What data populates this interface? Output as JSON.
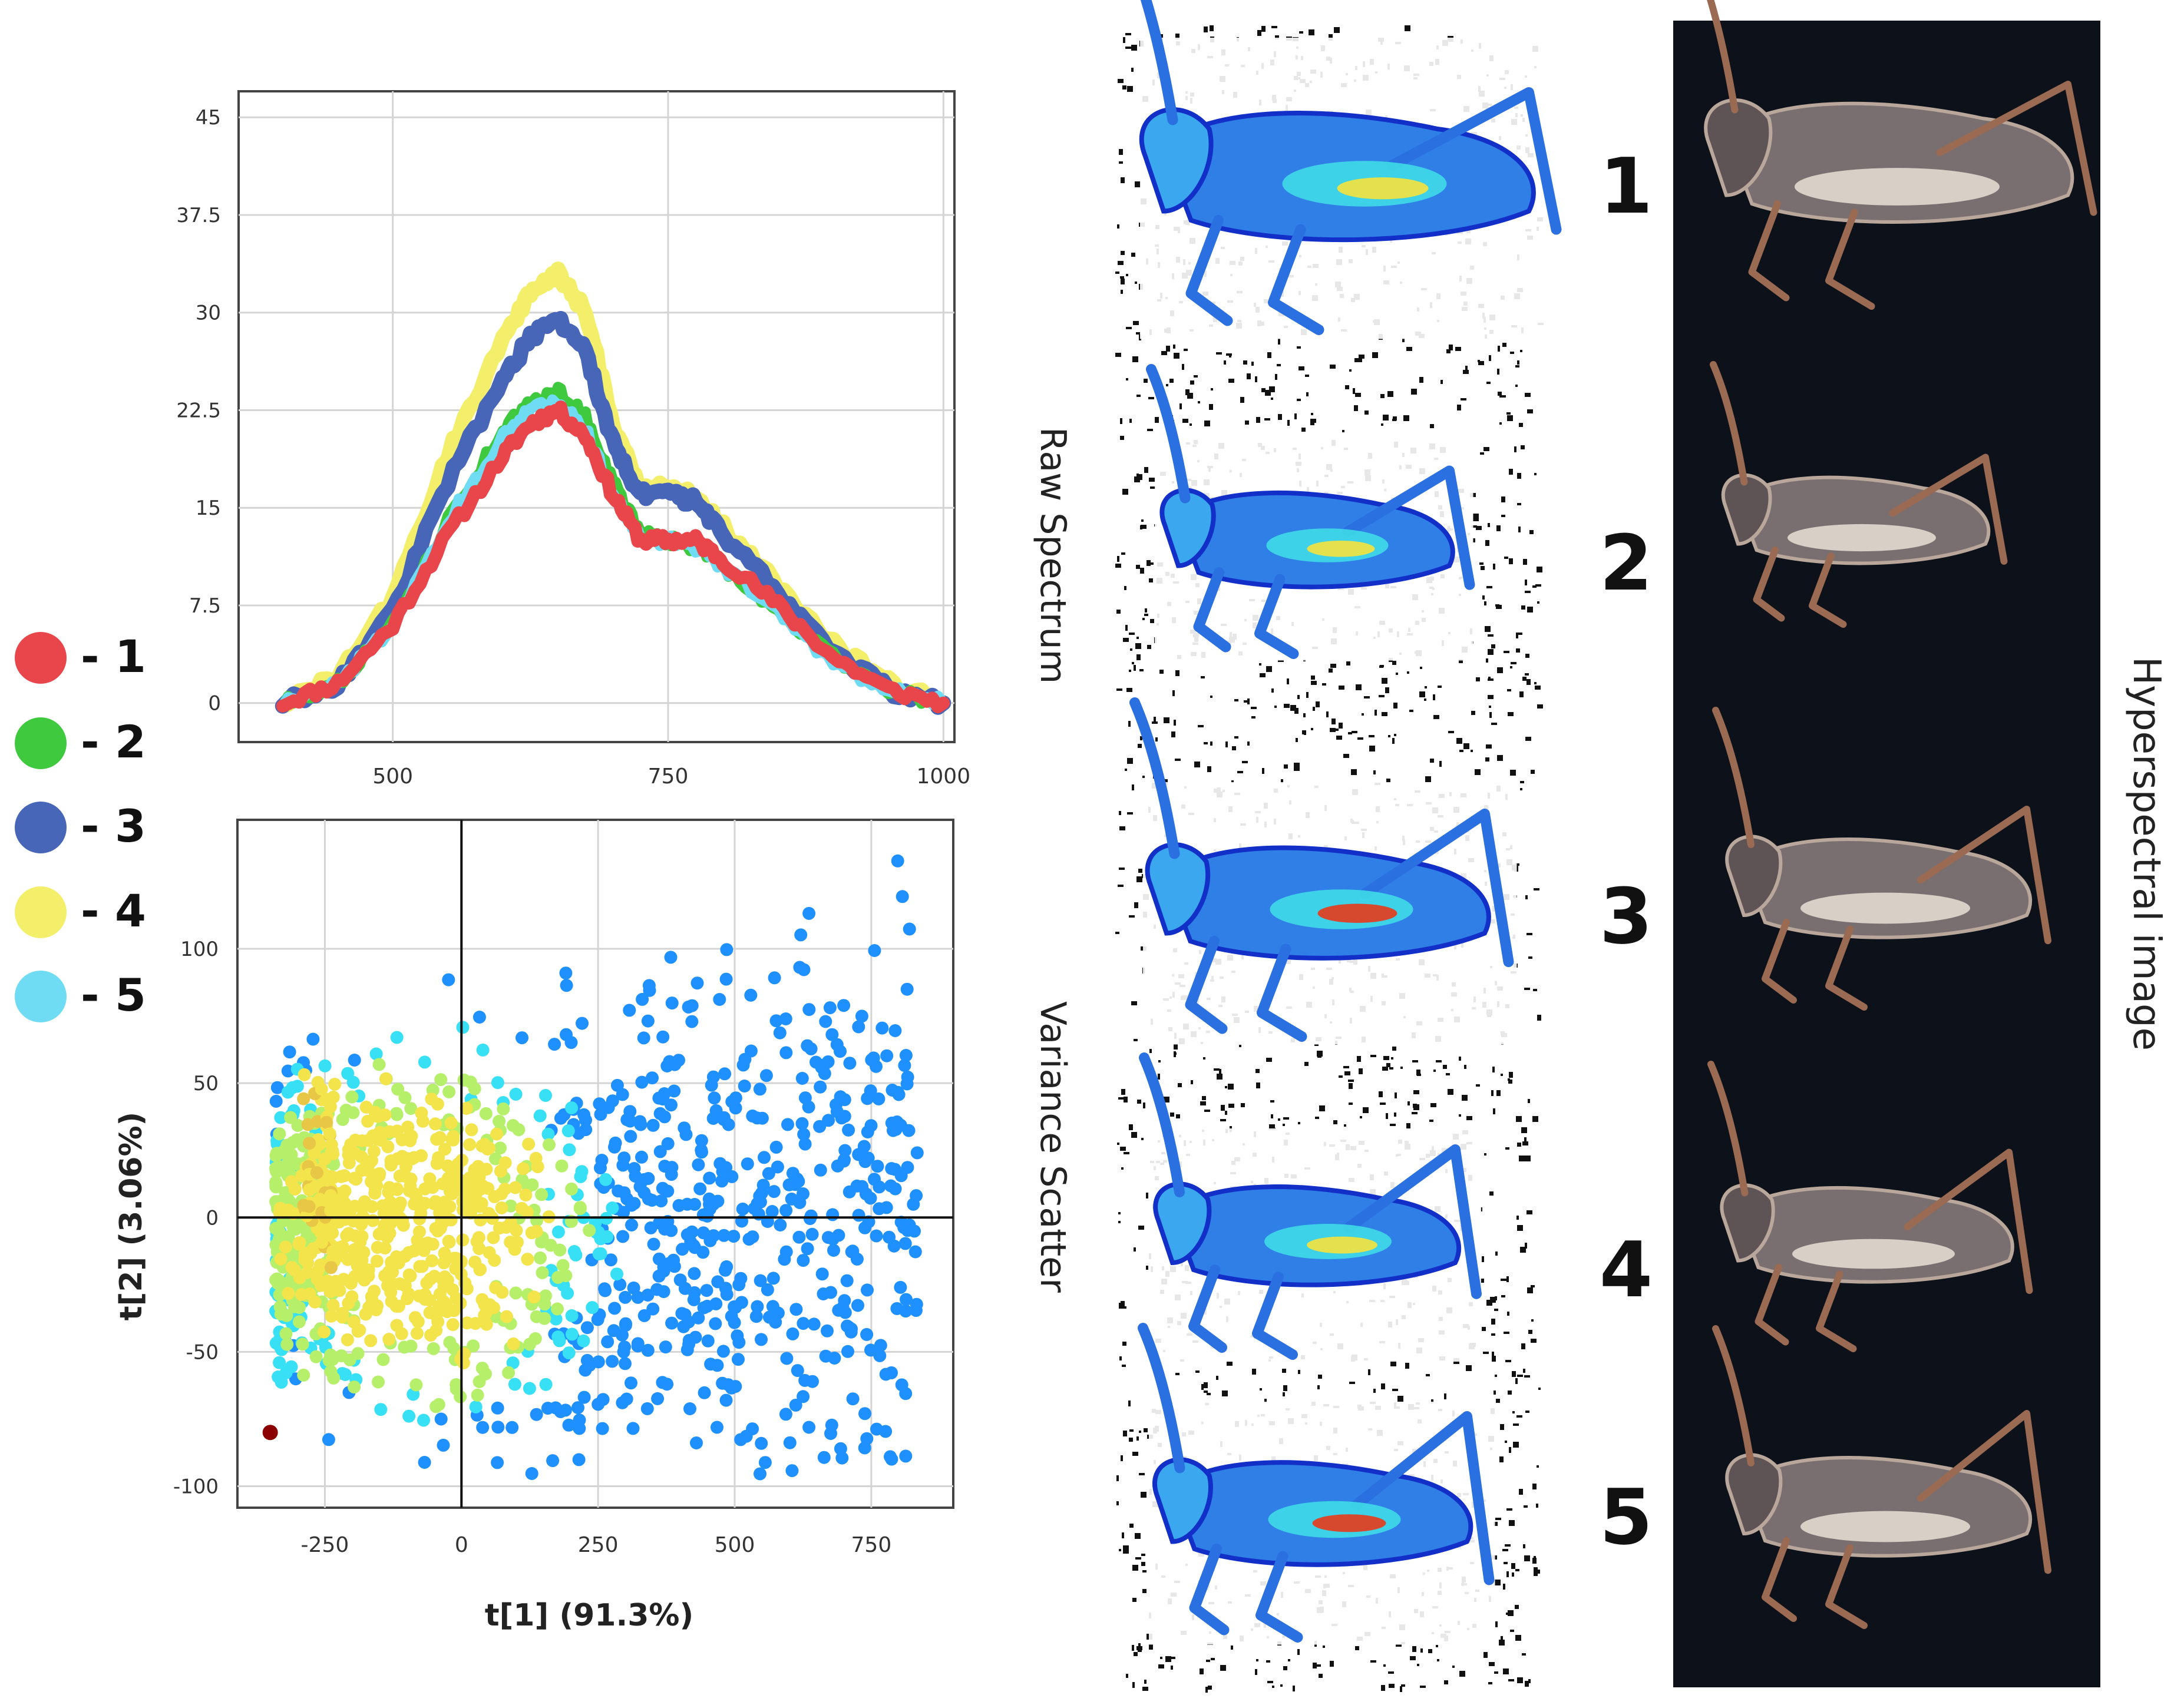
{
  "chart_data": [
    {
      "type": "line",
      "title": "",
      "xlabel": "",
      "ylabel": "",
      "xlim": [
        360,
        1010
      ],
      "ylim": [
        -3,
        47
      ],
      "x_ticks": [
        "500",
        "750",
        "1000"
      ],
      "y_ticks": [
        "0",
        "7.5",
        "15",
        "22.5",
        "30",
        "37.5",
        "45"
      ],
      "x": [
        400,
        450,
        500,
        550,
        600,
        625,
        650,
        675,
        700,
        725,
        750,
        775,
        800,
        850,
        900,
        950,
        1000
      ],
      "series": [
        {
          "name": "1",
          "color": "#e8464a",
          "values": [
            0,
            1.5,
            6,
            13,
            19,
            21.5,
            22.5,
            20.5,
            16,
            12.5,
            12.5,
            12.5,
            11,
            7.5,
            3.5,
            1,
            0
          ]
        },
        {
          "name": "2",
          "color": "#3ec93e",
          "values": [
            0,
            1.5,
            6,
            14,
            21,
            23,
            24,
            22,
            17,
            13,
            12.5,
            12,
            10.5,
            7,
            3.5,
            1,
            0
          ]
        },
        {
          "name": "3",
          "color": "#4766b8",
          "values": [
            0,
            1.5,
            7,
            17,
            25,
            28,
            29.5,
            27,
            20,
            16,
            16,
            15.5,
            13,
            8.5,
            4,
            1,
            0
          ]
        },
        {
          "name": "4",
          "color": "#f4ef6a",
          "values": [
            0,
            2,
            8,
            19,
            28,
            31.5,
            33,
            30,
            21.5,
            16.5,
            16.5,
            16,
            13.5,
            9,
            4.5,
            1.5,
            0
          ]
        },
        {
          "name": "5",
          "color": "#6fdcf3",
          "values": [
            0,
            1.5,
            6,
            14,
            20.5,
            22.5,
            23,
            21,
            16,
            12.5,
            12.5,
            12,
            10.5,
            7,
            3,
            1,
            0
          ]
        }
      ]
    },
    {
      "type": "scatter",
      "title": "",
      "xlabel": "t[1] (91.3%)",
      "ylabel": "t[2] (3.06%)",
      "xlim": [
        -410,
        900
      ],
      "ylim": [
        -108,
        148
      ],
      "x_ticks": [
        "-250",
        "0",
        "250",
        "500",
        "750"
      ],
      "y_ticks": [
        "-100",
        "-50",
        "0",
        "50",
        "100"
      ],
      "point_count": 1400,
      "color_scale": "jet (density)",
      "highlight_point": {
        "x": -350,
        "y": -80,
        "color": "#8b0000"
      }
    }
  ],
  "legend": {
    "items": [
      {
        "label": "- 1",
        "color": "#e8464a"
      },
      {
        "label": "- 2",
        "color": "#3ec93e"
      },
      {
        "label": "- 3",
        "color": "#4766b8"
      },
      {
        "label": "- 4",
        "color": "#f4ef6a"
      },
      {
        "label": "- 5",
        "color": "#6fdcf3"
      }
    ]
  },
  "panels": {
    "raw_spectrum_label": "Raw Spectrum",
    "variance_scatter_label": "Variance Scatter",
    "hyperspectral_label": "Hyperspectral image",
    "sample_numbers": [
      "1",
      "2",
      "3",
      "4",
      "5"
    ]
  }
}
